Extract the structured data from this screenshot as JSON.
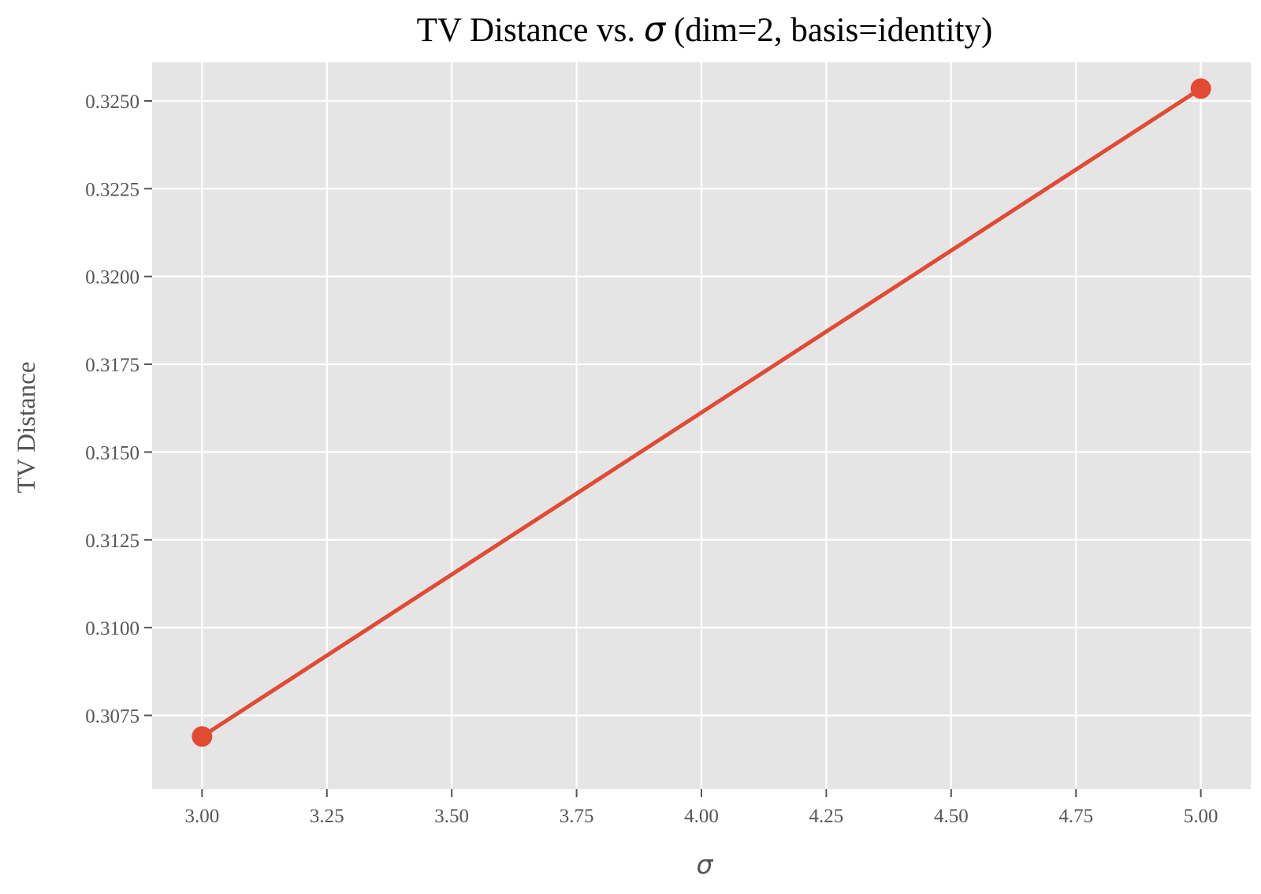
{
  "chart_data": {
    "type": "line",
    "title_prefix": "TV Distance vs. ",
    "title_symbol": "σ",
    "title_suffix": " (dim=2, basis=identity)",
    "xlabel": "σ",
    "ylabel": "TV Distance",
    "xlim": [
      2.9,
      5.1
    ],
    "ylim": [
      0.3054,
      0.3261
    ],
    "x_ticks": [
      3.0,
      3.25,
      3.5,
      3.75,
      4.0,
      4.25,
      4.5,
      4.75,
      5.0
    ],
    "x_tick_labels": [
      "3.00",
      "3.25",
      "3.50",
      "3.75",
      "4.00",
      "4.25",
      "4.50",
      "4.75",
      "5.00"
    ],
    "y_ticks": [
      0.3075,
      0.31,
      0.3125,
      0.315,
      0.3175,
      0.32,
      0.3225,
      0.325
    ],
    "y_tick_labels": [
      "0.3075",
      "0.3100",
      "0.3125",
      "0.3150",
      "0.3175",
      "0.3200",
      "0.3225",
      "0.3250"
    ],
    "grid": true,
    "series": [
      {
        "x": [
          3.0,
          5.0
        ],
        "y": [
          0.3069,
          0.32535
        ],
        "color": "#E24A33"
      }
    ],
    "background_color": "#E5E5E5",
    "grid_color": "#FFFFFF"
  }
}
